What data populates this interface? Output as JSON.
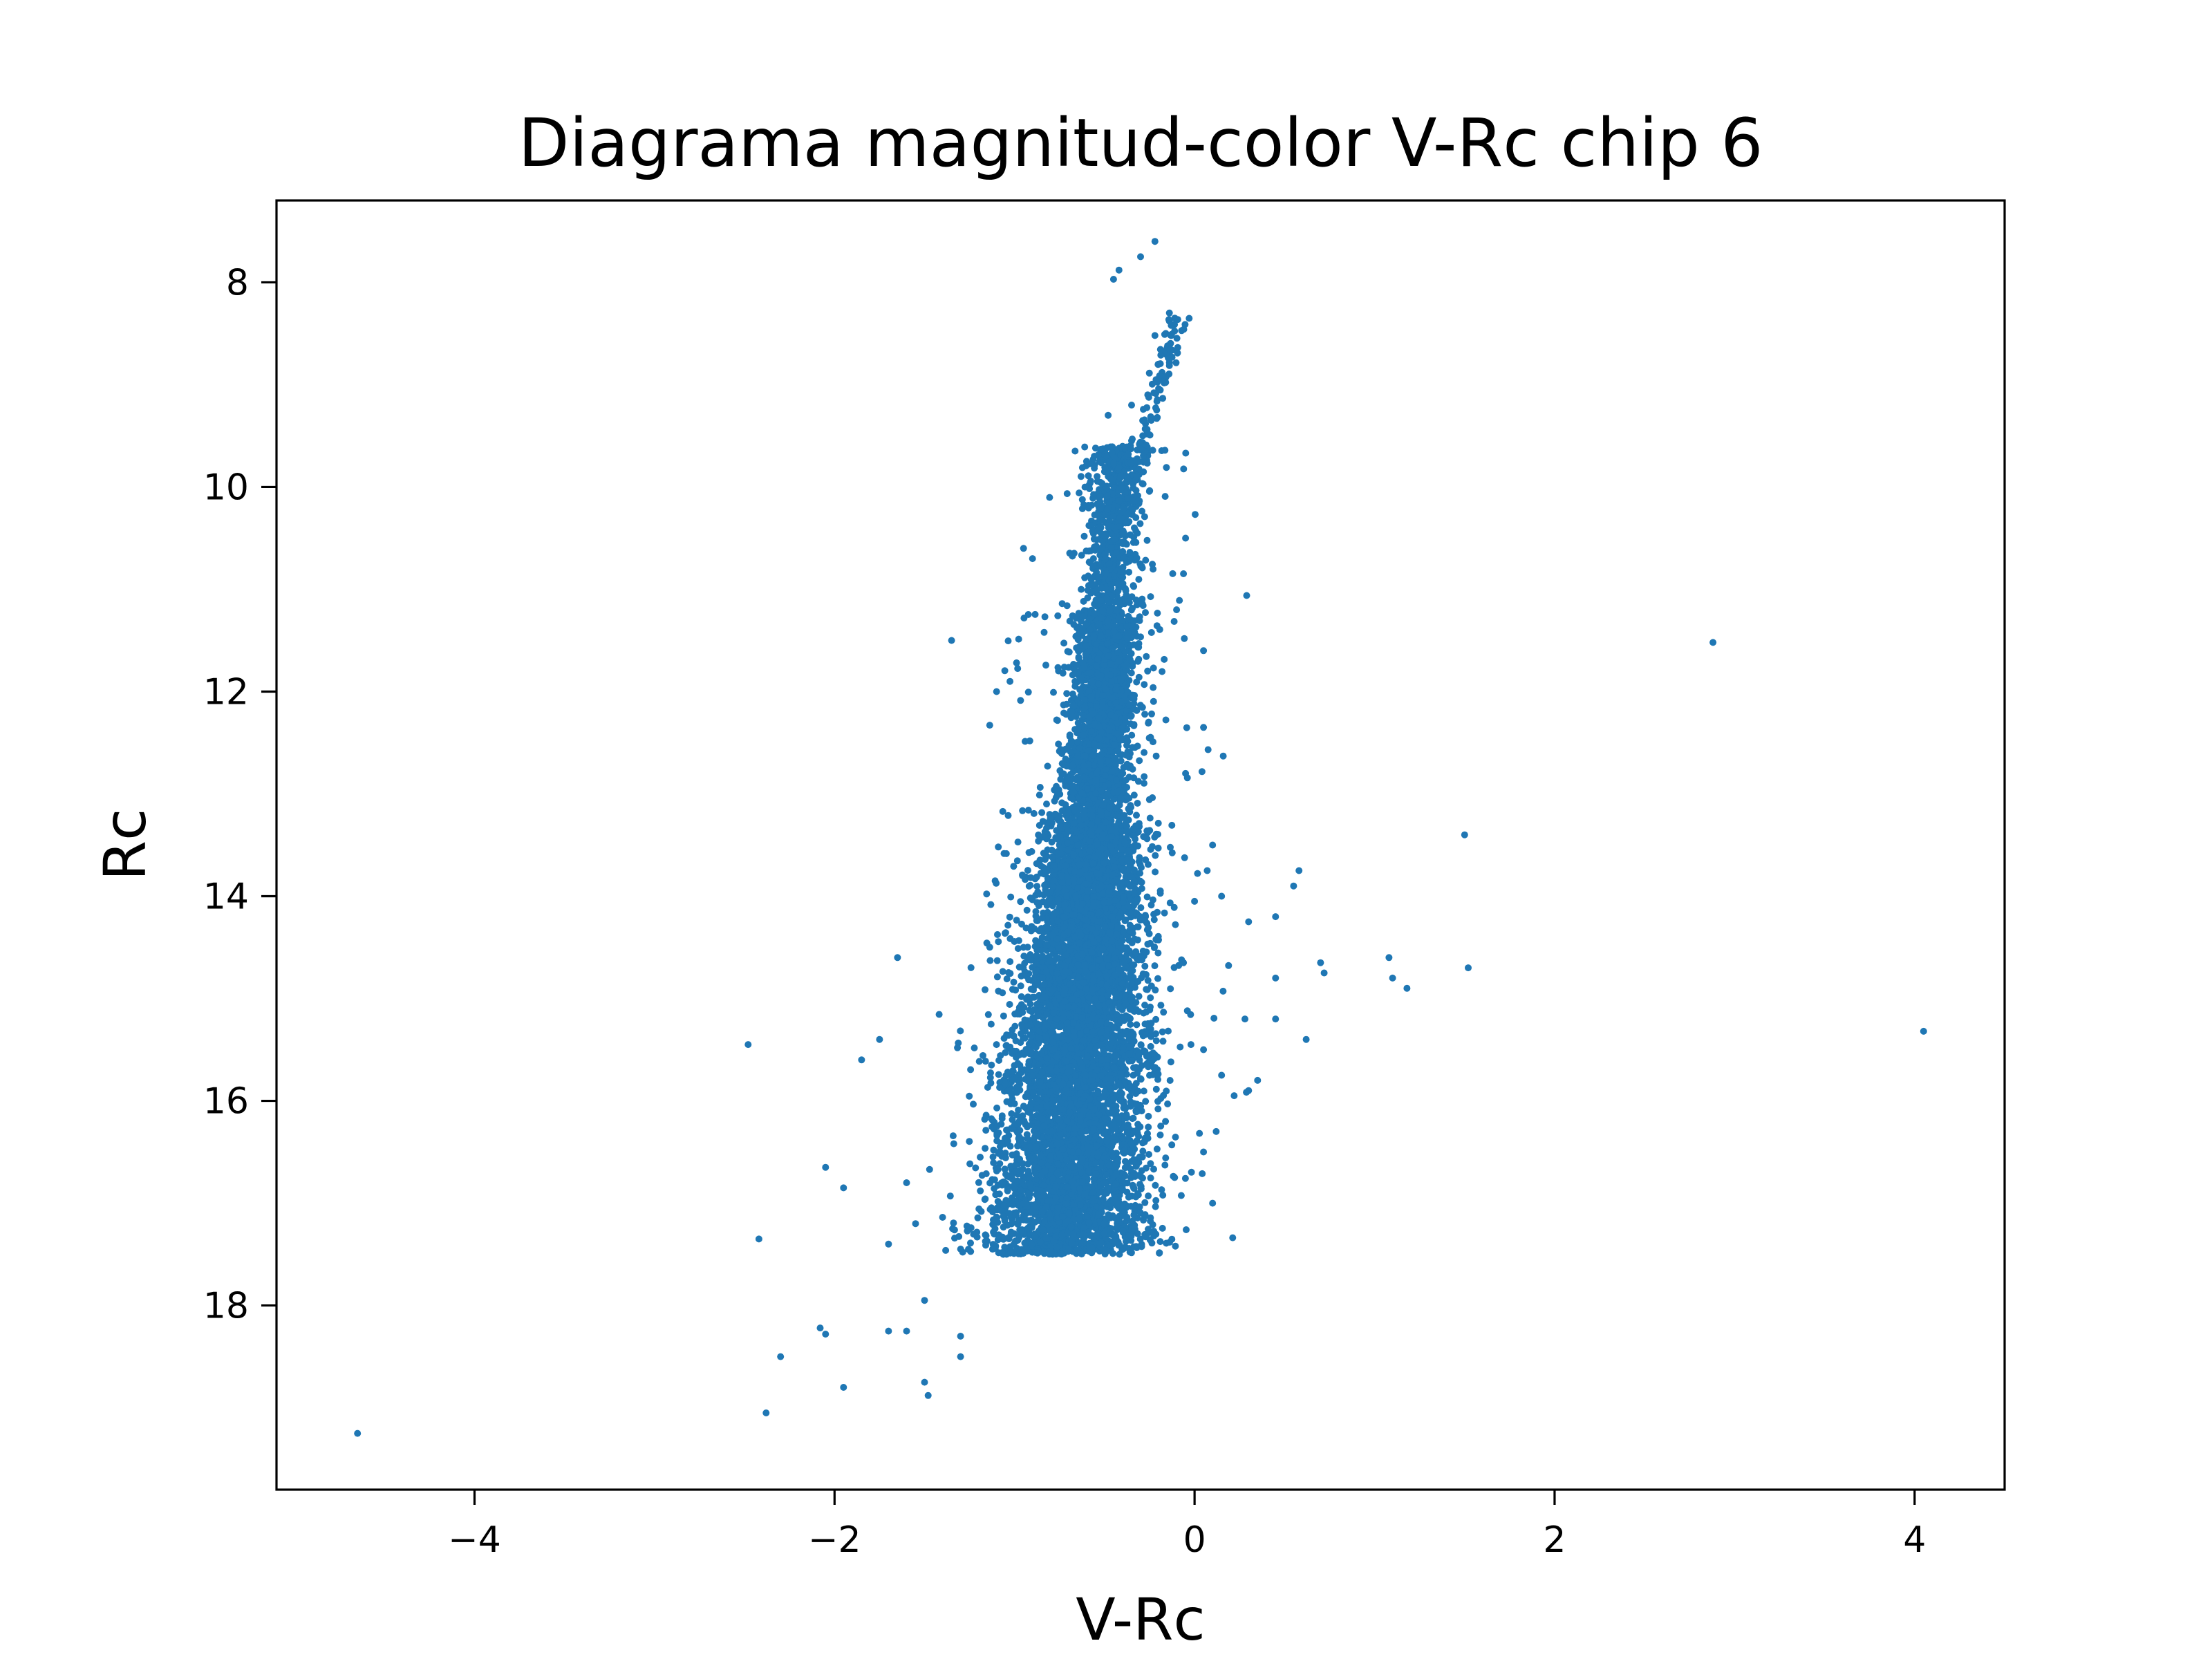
{
  "chart_data": {
    "type": "scatter",
    "title": "Diagrama magnitud-color V-Rc chip 6",
    "xlabel": "V-Rc",
    "ylabel": "Rc",
    "xlim": [
      -5.1,
      4.5
    ],
    "ylim": [
      19.8,
      7.2
    ],
    "y_inverted": true,
    "grid": false,
    "xticks": [
      -4,
      -2,
      0,
      2,
      4
    ],
    "xtick_labels": [
      "−4",
      "−2",
      "0",
      "2",
      "4"
    ],
    "yticks": [
      8,
      10,
      12,
      14,
      16,
      18
    ],
    "ytick_labels": [
      "8",
      "10",
      "12",
      "14",
      "16",
      "18"
    ],
    "marker_color": "#1f77b4",
    "series": [
      {
        "points": [
          [
            -0.22,
            7.6
          ],
          [
            -0.3,
            7.75
          ],
          [
            -0.42,
            7.88
          ],
          [
            -0.45,
            7.97
          ],
          [
            -0.14,
            8.3
          ],
          [
            -0.16,
            8.5
          ],
          [
            -0.22,
            8.52
          ],
          [
            -0.11,
            8.35
          ],
          [
            -0.15,
            8.62
          ],
          [
            -0.2,
            8.8
          ],
          [
            -0.18,
            8.95
          ],
          [
            -0.26,
            9.1
          ],
          [
            -0.35,
            9.2
          ],
          [
            -0.48,
            9.3
          ],
          [
            -0.35,
            9.55
          ],
          [
            -0.4,
            9.75
          ],
          [
            -0.5,
            9.85
          ],
          [
            -0.55,
            9.62
          ],
          [
            -0.6,
            9.75
          ],
          [
            -1.65,
            14.6
          ],
          [
            -1.75,
            15.4
          ],
          [
            -1.85,
            15.6
          ],
          [
            -2.48,
            15.45
          ],
          [
            -1.6,
            16.8
          ],
          [
            -2.05,
            16.65
          ],
          [
            -1.95,
            16.85
          ],
          [
            -1.55,
            17.2
          ],
          [
            -1.7,
            17.4
          ],
          [
            -2.42,
            17.35
          ],
          [
            -1.5,
            17.95
          ],
          [
            -1.7,
            18.25
          ],
          [
            -1.6,
            18.25
          ],
          [
            -2.08,
            18.22
          ],
          [
            -2.05,
            18.28
          ],
          [
            -1.3,
            18.3
          ],
          [
            -2.3,
            18.5
          ],
          [
            -1.3,
            18.5
          ],
          [
            -1.95,
            18.8
          ],
          [
            -1.5,
            18.75
          ],
          [
            -1.48,
            18.88
          ],
          [
            -2.38,
            19.05
          ],
          [
            -4.65,
            19.25
          ],
          [
            -1.35,
            11.5
          ],
          [
            -1.1,
            12.0
          ],
          [
            -0.95,
            10.6
          ],
          [
            -0.9,
            10.7
          ],
          [
            -0.05,
            10.5
          ],
          [
            0.05,
            11.6
          ],
          [
            -0.1,
            11.2
          ],
          [
            0.05,
            12.35
          ],
          [
            -0.05,
            12.8
          ],
          [
            0.07,
            13.75
          ],
          [
            0.1,
            13.5
          ],
          [
            0.0,
            14.05
          ],
          [
            0.15,
            14.0
          ],
          [
            0.45,
            14.2
          ],
          [
            0.55,
            13.9
          ],
          [
            0.58,
            13.75
          ],
          [
            0.3,
            14.25
          ],
          [
            0.45,
            14.8
          ],
          [
            0.45,
            15.2
          ],
          [
            0.62,
            15.4
          ],
          [
            0.28,
            15.2
          ],
          [
            0.35,
            15.8
          ],
          [
            0.3,
            15.9
          ],
          [
            0.22,
            15.95
          ],
          [
            0.15,
            15.75
          ],
          [
            0.05,
            15.5
          ],
          [
            0.12,
            16.3
          ],
          [
            0.05,
            16.5
          ],
          [
            0.1,
            17.0
          ],
          [
            -0.02,
            15.45
          ],
          [
            0.7,
            14.65
          ],
          [
            0.72,
            14.75
          ],
          [
            1.08,
            14.6
          ],
          [
            1.1,
            14.8
          ],
          [
            1.18,
            14.9
          ],
          [
            1.5,
            13.4
          ],
          [
            1.52,
            14.7
          ],
          [
            2.88,
            11.52
          ],
          [
            4.05,
            15.32
          ]
        ]
      }
    ]
  }
}
